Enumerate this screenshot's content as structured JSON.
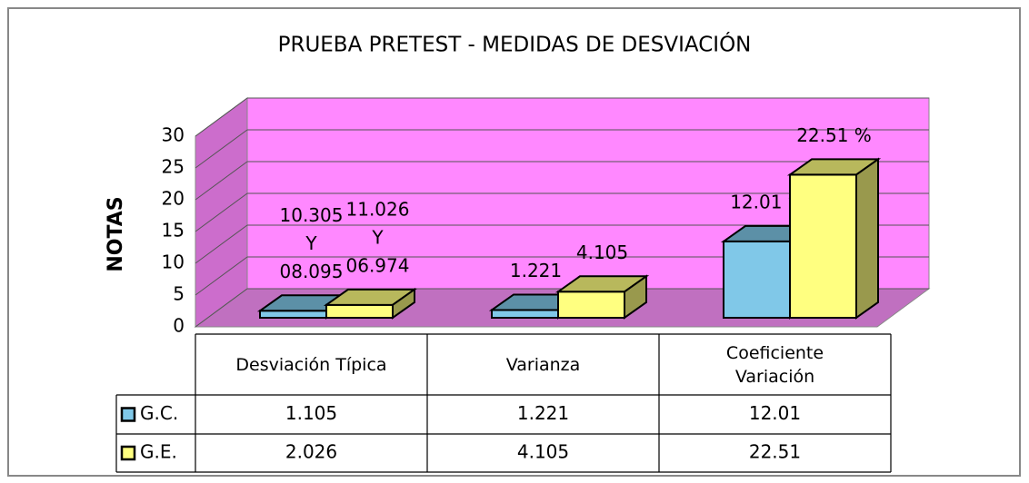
{
  "chart_data": {
    "type": "bar3d",
    "title": "PRUEBA PRETEST - MEDIDAS DE DESVIACIÓN",
    "y_label": "NOTAS",
    "categories": [
      "Desviación Típica",
      "Varianza",
      "Coeficiente Variación"
    ],
    "series": [
      {
        "name": "G.C.",
        "color": "#80c8e8",
        "values": [
          1.105,
          1.221,
          12.01
        ],
        "value_labels": [
          null,
          "1.221",
          "12.01 %"
        ]
      },
      {
        "name": "G.E.",
        "color": "#ffff80",
        "values": [
          2.026,
          4.105,
          22.51
        ],
        "value_labels": [
          null,
          "4.105",
          "22.51 %"
        ]
      }
    ],
    "annotations": [
      [
        "10.305",
        "Y",
        "08.095"
      ],
      [
        "11.026",
        "Y",
        "06.974"
      ]
    ],
    "ylim": [
      0,
      30
    ],
    "yticks": [
      0,
      5,
      10,
      15,
      20,
      25,
      30
    ],
    "grid": true,
    "wall_color": "#ff88ff",
    "floor_color": "#c070c0"
  }
}
